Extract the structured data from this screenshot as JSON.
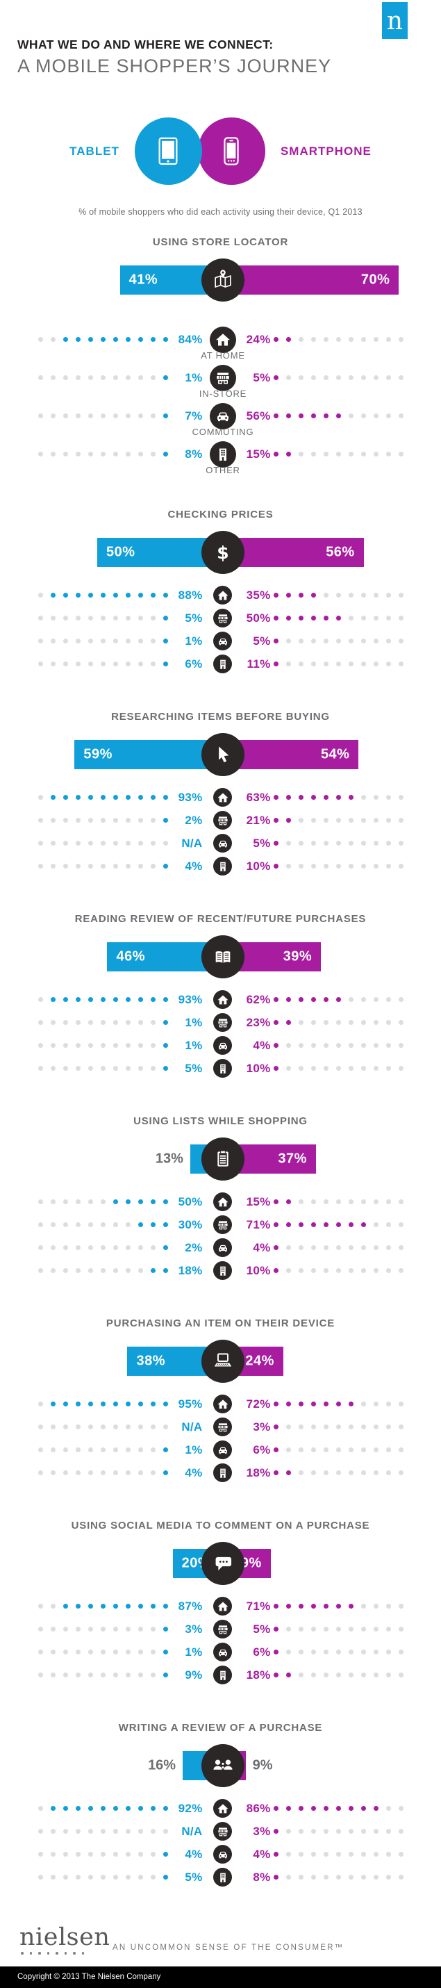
{
  "colors": {
    "tablet": "#119FD9",
    "smartphone": "#A81CA0",
    "dark": "#2B2726",
    "gray_text": "#6D6E71",
    "dot_gray": "#DCDDDE"
  },
  "brand": {
    "logo_letter": "n",
    "wordmark": "nielsen",
    "tagline": "AN UNCOMMON SENSE OF THE CONSUMER™",
    "copyright": "Copyright © 2013 The Nielsen Company"
  },
  "header": {
    "title_line1": "WHAT WE DO AND WHERE WE CONNECT:",
    "title_line2": "A MOBILE SHOPPER’S JOURNEY"
  },
  "legend": {
    "tablet_label": "TABLET",
    "smartphone_label": "SMARTPHONE",
    "tablet_icon": "tablet-icon",
    "smartphone_icon": "smartphone-icon"
  },
  "subtitle": "% of mobile shoppers who did each activity using their device, Q1 2013",
  "location_labels": [
    "AT HOME",
    "IN-STORE",
    "COMMUTING",
    "OTHER"
  ],
  "location_icons": [
    "home",
    "store",
    "car",
    "building"
  ],
  "chart_data": {
    "type": "bar",
    "note": "tablet vs smartphone % of mobile shoppers per activity; rows = % by location (At home / In-store / Commuting / Other); dots show value out of 11",
    "sections": [
      {
        "title": "USING STORE LOCATOR",
        "icon": "map",
        "tablet": 41,
        "smartphone": 70,
        "tablet_label": "41%",
        "smartphone_label": "70%",
        "tablet_outside": false,
        "smartphone_outside": false,
        "rows": [
          {
            "tablet": "84%",
            "tdots": 9,
            "smartphone": "24%",
            "sdots": 2
          },
          {
            "tablet": "1%",
            "tdots": 1,
            "smartphone": "5%",
            "sdots": 1
          },
          {
            "tablet": "7%",
            "tdots": 1,
            "smartphone": "56%",
            "sdots": 6
          },
          {
            "tablet": "8%",
            "tdots": 1,
            "smartphone": "15%",
            "sdots": 2
          }
        ]
      },
      {
        "title": "CHECKING PRICES",
        "icon": "dollar",
        "tablet": 50,
        "smartphone": 56,
        "tablet_label": "50%",
        "smartphone_label": "56%",
        "tablet_outside": false,
        "smartphone_outside": false,
        "rows": [
          {
            "tablet": "88%",
            "tdots": 10,
            "smartphone": "35%",
            "sdots": 4
          },
          {
            "tablet": "5%",
            "tdots": 1,
            "smartphone": "50%",
            "sdots": 6
          },
          {
            "tablet": "1%",
            "tdots": 1,
            "smartphone": "5%",
            "sdots": 1
          },
          {
            "tablet": "6%",
            "tdots": 1,
            "smartphone": "11%",
            "sdots": 1
          }
        ]
      },
      {
        "title": "RESEARCHING ITEMS BEFORE BUYING",
        "icon": "cursor",
        "tablet": 59,
        "smartphone": 54,
        "tablet_label": "59%",
        "smartphone_label": "54%",
        "tablet_outside": false,
        "smartphone_outside": false,
        "rows": [
          {
            "tablet": "93%",
            "tdots": 10,
            "smartphone": "63%",
            "sdots": 7
          },
          {
            "tablet": "2%",
            "tdots": 1,
            "smartphone": "21%",
            "sdots": 2
          },
          {
            "tablet": "N/A",
            "tdots": 0,
            "smartphone": "5%",
            "sdots": 1
          },
          {
            "tablet": "4%",
            "tdots": 1,
            "smartphone": "10%",
            "sdots": 1
          }
        ]
      },
      {
        "title": "READING REVIEW OF RECENT/FUTURE PURCHASES",
        "icon": "book",
        "tablet": 46,
        "smartphone": 39,
        "tablet_label": "46%",
        "smartphone_label": "39%",
        "tablet_outside": false,
        "smartphone_outside": false,
        "rows": [
          {
            "tablet": "93%",
            "tdots": 10,
            "smartphone": "62%",
            "sdots": 6
          },
          {
            "tablet": "1%",
            "tdots": 1,
            "smartphone": "23%",
            "sdots": 2
          },
          {
            "tablet": "1%",
            "tdots": 1,
            "smartphone": "4%",
            "sdots": 1
          },
          {
            "tablet": "5%",
            "tdots": 1,
            "smartphone": "10%",
            "sdots": 1
          }
        ]
      },
      {
        "title": "USING LISTS WHILE SHOPPING",
        "icon": "clipboard",
        "tablet": 13,
        "smartphone": 37,
        "tablet_label": "13%",
        "smartphone_label": "37%",
        "tablet_outside": true,
        "smartphone_outside": false,
        "rows": [
          {
            "tablet": "50%",
            "tdots": 5,
            "smartphone": "15%",
            "sdots": 2
          },
          {
            "tablet": "30%",
            "tdots": 3,
            "smartphone": "71%",
            "sdots": 8
          },
          {
            "tablet": "2%",
            "tdots": 1,
            "smartphone": "4%",
            "sdots": 1
          },
          {
            "tablet": "18%",
            "tdots": 2,
            "smartphone": "10%",
            "sdots": 1
          }
        ]
      },
      {
        "title": "PURCHASING AN ITEM ON THEIR DEVICE",
        "icon": "laptop",
        "tablet": 38,
        "smartphone": 24,
        "tablet_label": "38%",
        "smartphone_label": "24%",
        "tablet_outside": false,
        "smartphone_outside": false,
        "rows": [
          {
            "tablet": "95%",
            "tdots": 10,
            "smartphone": "72%",
            "sdots": 7
          },
          {
            "tablet": "N/A",
            "tdots": 0,
            "smartphone": "3%",
            "sdots": 1
          },
          {
            "tablet": "1%",
            "tdots": 1,
            "smartphone": "6%",
            "sdots": 1
          },
          {
            "tablet": "4%",
            "tdots": 1,
            "smartphone": "18%",
            "sdots": 2
          }
        ]
      },
      {
        "title": "USING SOCIAL MEDIA TO COMMENT ON A PURCHASE",
        "icon": "chat",
        "tablet": 20,
        "smartphone": 19,
        "tablet_label": "20%",
        "smartphone_label": "19%",
        "tablet_outside": false,
        "smartphone_outside": false,
        "rows": [
          {
            "tablet": "87%",
            "tdots": 9,
            "smartphone": "71%",
            "sdots": 7
          },
          {
            "tablet": "3%",
            "tdots": 1,
            "smartphone": "5%",
            "sdots": 1
          },
          {
            "tablet": "1%",
            "tdots": 1,
            "smartphone": "6%",
            "sdots": 1
          },
          {
            "tablet": "9%",
            "tdots": 1,
            "smartphone": "18%",
            "sdots": 2
          }
        ]
      },
      {
        "title": "WRITING A REVIEW OF A PURCHASE",
        "icon": "people",
        "tablet": 16,
        "smartphone": 9,
        "tablet_label": "16%",
        "smartphone_label": "9%",
        "tablet_outside": true,
        "smartphone_outside": true,
        "rows": [
          {
            "tablet": "92%",
            "tdots": 10,
            "smartphone": "86%",
            "sdots": 9
          },
          {
            "tablet": "N/A",
            "tdots": 0,
            "smartphone": "3%",
            "sdots": 1
          },
          {
            "tablet": "4%",
            "tdots": 1,
            "smartphone": "4%",
            "sdots": 1
          },
          {
            "tablet": "5%",
            "tdots": 1,
            "smartphone": "8%",
            "sdots": 1
          }
        ]
      }
    ]
  }
}
